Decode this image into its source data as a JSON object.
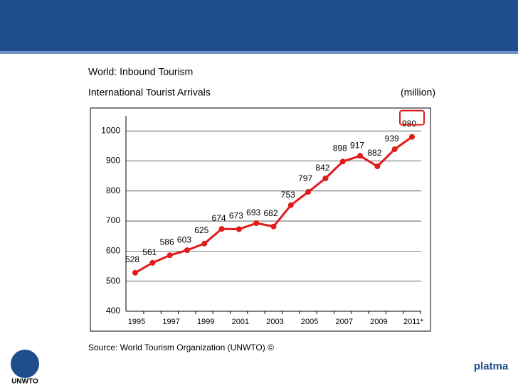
{
  "chart_data": {
    "type": "line",
    "title": "World: Inbound Tourism",
    "subtitle": "International Tourist Arrivals",
    "unit_label": "(million)",
    "categories": [
      "1995",
      null,
      "1997",
      null,
      "1999",
      null,
      "2001",
      null,
      "2003",
      null,
      "2005",
      null,
      "2007",
      null,
      "2009",
      null,
      "2011*"
    ],
    "values": [
      528,
      561,
      586,
      603,
      625,
      674,
      673,
      693,
      682,
      753,
      797,
      842,
      898,
      917,
      882,
      939,
      980
    ],
    "color": "#e01b1b",
    "ylim": [
      400,
      1050
    ],
    "yticks": [
      400,
      500,
      600,
      700,
      800,
      900,
      1000
    ],
    "grid": true
  },
  "source": "Source: World Tourism Organization (UNWTO) ©",
  "logos": {
    "left": "UNWTO",
    "right": "platma"
  }
}
